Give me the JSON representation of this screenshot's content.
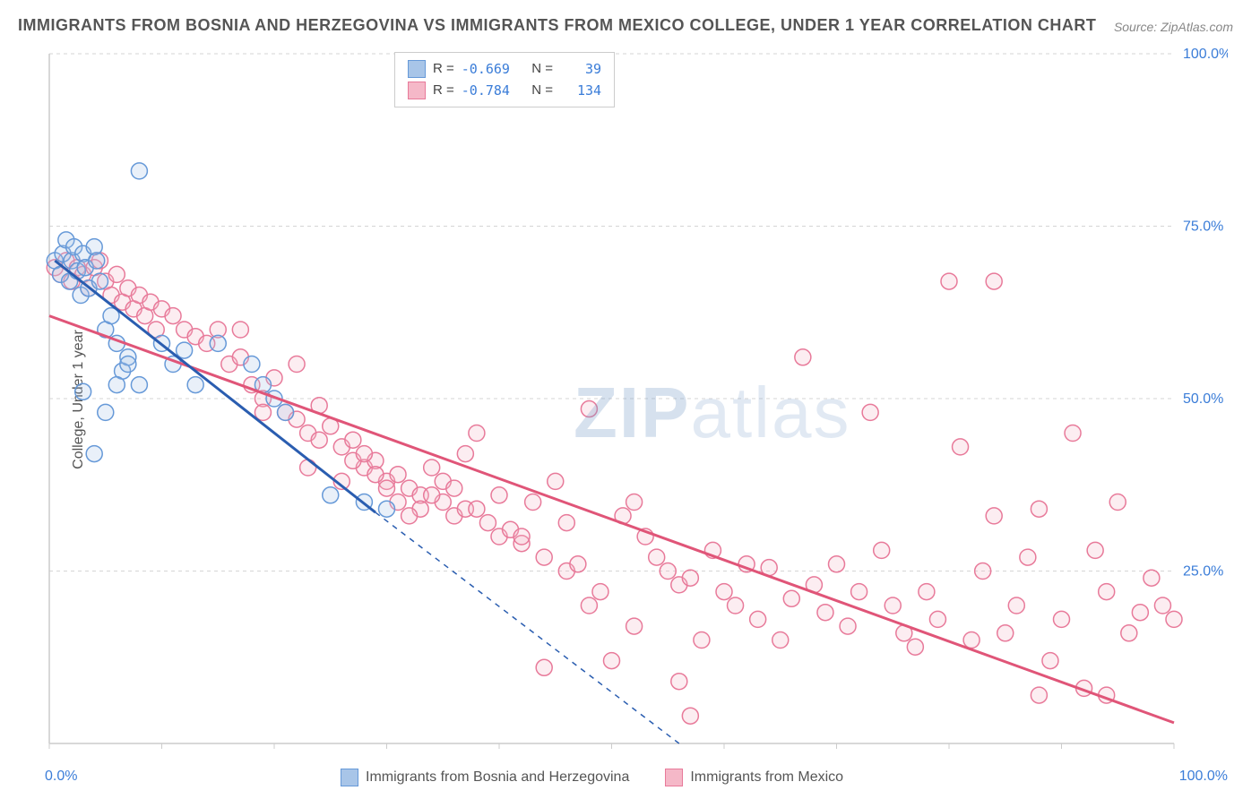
{
  "title": "IMMIGRANTS FROM BOSNIA AND HERZEGOVINA VS IMMIGRANTS FROM MEXICO COLLEGE, UNDER 1 YEAR CORRELATION CHART",
  "source": "Source: ZipAtlas.com",
  "y_axis_label": "College, Under 1 year",
  "watermark_bold": "ZIP",
  "watermark_light": "atlas",
  "chart": {
    "type": "scatter",
    "xlim": [
      0,
      100
    ],
    "ylim": [
      0,
      100
    ],
    "x_ticks": [
      0,
      100
    ],
    "x_tick_labels": [
      "0.0%",
      "100.0%"
    ],
    "y_ticks": [
      25,
      50,
      75,
      100
    ],
    "y_tick_labels": [
      "25.0%",
      "50.0%",
      "75.0%",
      "100.0%"
    ],
    "background_color": "#ffffff",
    "grid_color": "#d5d5d5",
    "axis_color": "#cccccc",
    "tick_label_color": "#3b7dd8",
    "marker_radius": 9,
    "marker_stroke_width": 1.5,
    "marker_fill_opacity": 0.25
  },
  "series": [
    {
      "name": "Immigrants from Bosnia and Herzegovina",
      "short": "bosnia",
      "color_stroke": "#6699d8",
      "color_fill": "#a8c5e8",
      "line_color": "#2a5db0",
      "r_value": "-0.669",
      "n_value": "39",
      "trend": {
        "x1": 0.5,
        "y1": 70,
        "x2": 29,
        "y2": 33.5,
        "solid_until_x": 29,
        "dash_to_x": 56,
        "dash_to_y": 0
      },
      "points": [
        [
          0.5,
          70
        ],
        [
          1,
          68
        ],
        [
          1.2,
          71
        ],
        [
          1.5,
          73
        ],
        [
          1.8,
          67
        ],
        [
          2,
          70
        ],
        [
          2.2,
          72
        ],
        [
          2.5,
          68.5
        ],
        [
          2.8,
          65
        ],
        [
          3,
          71
        ],
        [
          3.2,
          69
        ],
        [
          3.5,
          66
        ],
        [
          4,
          72
        ],
        [
          4.2,
          70
        ],
        [
          4.5,
          67
        ],
        [
          5,
          60
        ],
        [
          5.5,
          62
        ],
        [
          6,
          58
        ],
        [
          6.5,
          54
        ],
        [
          7,
          56
        ],
        [
          8,
          83
        ],
        [
          3,
          51
        ],
        [
          4,
          42
        ],
        [
          5,
          48
        ],
        [
          6,
          52
        ],
        [
          7,
          55
        ],
        [
          8,
          52
        ],
        [
          10,
          58
        ],
        [
          11,
          55
        ],
        [
          12,
          57
        ],
        [
          13,
          52
        ],
        [
          15,
          58
        ],
        [
          18,
          55
        ],
        [
          19,
          52
        ],
        [
          20,
          50
        ],
        [
          21,
          48
        ],
        [
          25,
          36
        ],
        [
          28,
          35
        ],
        [
          30,
          34
        ]
      ]
    },
    {
      "name": "Immigrants from Mexico",
      "short": "mexico",
      "color_stroke": "#e87a9a",
      "color_fill": "#f5b8c8",
      "line_color": "#e05578",
      "r_value": "-0.784",
      "n_value": "134",
      "trend": {
        "x1": 0,
        "y1": 62,
        "x2": 100,
        "y2": 3
      },
      "points": [
        [
          0.5,
          69
        ],
        [
          1,
          68
        ],
        [
          1.5,
          70
        ],
        [
          2,
          67
        ],
        [
          2.5,
          69
        ],
        [
          3,
          68
        ],
        [
          3.5,
          66
        ],
        [
          4,
          69
        ],
        [
          4.5,
          70
        ],
        [
          5,
          67
        ],
        [
          5.5,
          65
        ],
        [
          6,
          68
        ],
        [
          6.5,
          64
        ],
        [
          7,
          66
        ],
        [
          7.5,
          63
        ],
        [
          8,
          65
        ],
        [
          8.5,
          62
        ],
        [
          9,
          64
        ],
        [
          9.5,
          60
        ],
        [
          10,
          63
        ],
        [
          11,
          62
        ],
        [
          12,
          60
        ],
        [
          13,
          59
        ],
        [
          14,
          58
        ],
        [
          15,
          60
        ],
        [
          16,
          55
        ],
        [
          17,
          56
        ],
        [
          18,
          52
        ],
        [
          19,
          50
        ],
        [
          20,
          53
        ],
        [
          21,
          48
        ],
        [
          22,
          47
        ],
        [
          23,
          45
        ],
        [
          24,
          49
        ],
        [
          25,
          46
        ],
        [
          26,
          43
        ],
        [
          27,
          44
        ],
        [
          28,
          40
        ],
        [
          29,
          41
        ],
        [
          30,
          38
        ],
        [
          31,
          39
        ],
        [
          32,
          37
        ],
        [
          33,
          36
        ],
        [
          34,
          40
        ],
        [
          35,
          35
        ],
        [
          36,
          33
        ],
        [
          37,
          34
        ],
        [
          38,
          45
        ],
        [
          39,
          32
        ],
        [
          40,
          30
        ],
        [
          41,
          31
        ],
        [
          42,
          29
        ],
        [
          43,
          35
        ],
        [
          44,
          27
        ],
        [
          45,
          38
        ],
        [
          46,
          25
        ],
        [
          47,
          26
        ],
        [
          48,
          48.5
        ],
        [
          49,
          22
        ],
        [
          50,
          12
        ],
        [
          51,
          33
        ],
        [
          52,
          35
        ],
        [
          53,
          30
        ],
        [
          54,
          27
        ],
        [
          55,
          25
        ],
        [
          56,
          23
        ],
        [
          57,
          24
        ],
        [
          58,
          15
        ],
        [
          59,
          28
        ],
        [
          60,
          22
        ],
        [
          61,
          20
        ],
        [
          62,
          26
        ],
        [
          63,
          18
        ],
        [
          64,
          25.5
        ],
        [
          65,
          15
        ],
        [
          66,
          21
        ],
        [
          67,
          56
        ],
        [
          68,
          23
        ],
        [
          69,
          19
        ],
        [
          70,
          26
        ],
        [
          71,
          17
        ],
        [
          72,
          22
        ],
        [
          73,
          48
        ],
        [
          74,
          28
        ],
        [
          75,
          20
        ],
        [
          76,
          16
        ],
        [
          77,
          14
        ],
        [
          78,
          22
        ],
        [
          79,
          18
        ],
        [
          80,
          67
        ],
        [
          81,
          43
        ],
        [
          82,
          15
        ],
        [
          83,
          25
        ],
        [
          84,
          33
        ],
        [
          85,
          16
        ],
        [
          86,
          20
        ],
        [
          87,
          27
        ],
        [
          88,
          34
        ],
        [
          89,
          12
        ],
        [
          90,
          18
        ],
        [
          91,
          45
        ],
        [
          92,
          8
        ],
        [
          93,
          28
        ],
        [
          94,
          22
        ],
        [
          95,
          35
        ],
        [
          96,
          16
        ],
        [
          97,
          19
        ],
        [
          98,
          24
        ],
        [
          99,
          20
        ],
        [
          100,
          18
        ],
        [
          84,
          67
        ],
        [
          56,
          9
        ],
        [
          57,
          4
        ],
        [
          44,
          11
        ],
        [
          48,
          20
        ],
        [
          52,
          17
        ],
        [
          46,
          32
        ],
        [
          38,
          34
        ],
        [
          40,
          36
        ],
        [
          42,
          30
        ],
        [
          35,
          38
        ],
        [
          37,
          42
        ],
        [
          33,
          34
        ],
        [
          36,
          37
        ],
        [
          31,
          35
        ],
        [
          34,
          36
        ],
        [
          29,
          39
        ],
        [
          32,
          33
        ],
        [
          27,
          41
        ],
        [
          30,
          37
        ],
        [
          26,
          38
        ],
        [
          28,
          42
        ],
        [
          24,
          44
        ],
        [
          23,
          40
        ],
        [
          22,
          55
        ],
        [
          19,
          48
        ],
        [
          17,
          60
        ],
        [
          94,
          7
        ],
        [
          88,
          7
        ]
      ]
    }
  ],
  "legend_stats_labels": {
    "r": "R =",
    "n": "N ="
  },
  "bottom_legend": [
    {
      "swatch": 0,
      "label": "Immigrants from Bosnia and Herzegovina"
    },
    {
      "swatch": 1,
      "label": "Immigrants from Mexico"
    }
  ]
}
